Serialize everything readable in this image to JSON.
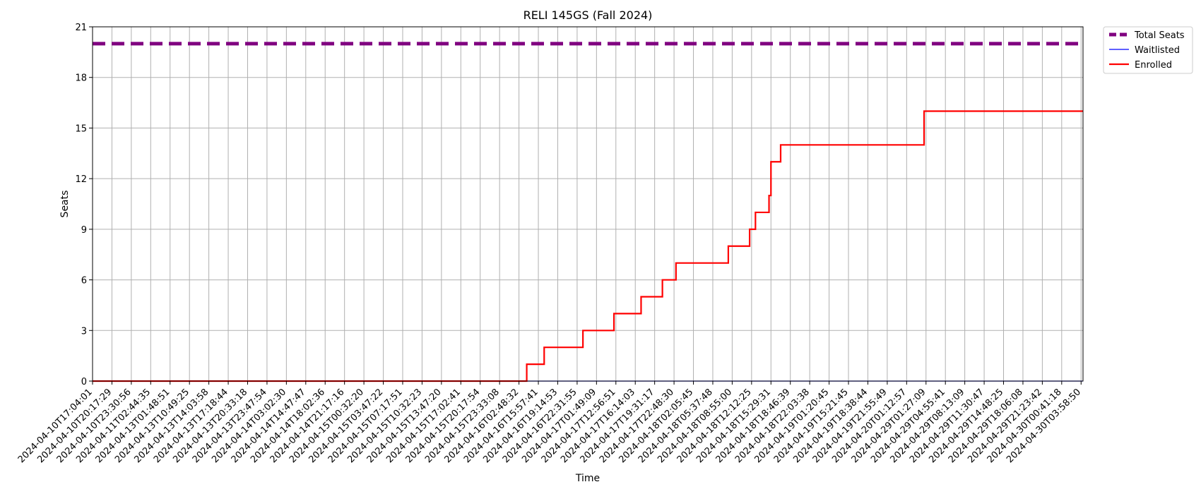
{
  "chart_data": {
    "type": "line",
    "title": "RELI 145GS (Fall 2024)",
    "xlabel": "Time",
    "ylabel": "Seats",
    "ylim": [
      0,
      21
    ],
    "yticks": [
      0,
      3,
      6,
      9,
      12,
      15,
      18,
      21
    ],
    "grid": true,
    "legend_position": "outside-top-right",
    "x_tick_labels": [
      "2024-04-10T17:04:01",
      "2024-04-10T20:17:29",
      "2024-04-10T23:30:56",
      "2024-04-11T02:44:35",
      "2024-04-13T01:48:51",
      "2024-04-13T10:49:25",
      "2024-04-13T14:03:58",
      "2024-04-13T17:18:44",
      "2024-04-13T20:33:18",
      "2024-04-13T23:47:54",
      "2024-04-14T03:02:30",
      "2024-04-14T14:47:47",
      "2024-04-14T18:02:36",
      "2024-04-14T21:17:16",
      "2024-04-15T00:32:20",
      "2024-04-15T03:47:22",
      "2024-04-15T07:17:51",
      "2024-04-15T10:32:23",
      "2024-04-15T13:47:20",
      "2024-04-15T17:02:41",
      "2024-04-15T20:17:54",
      "2024-04-15T23:33:08",
      "2024-04-16T02:48:32",
      "2024-04-16T15:57:41",
      "2024-04-16T19:14:53",
      "2024-04-16T22:31:55",
      "2024-04-17T01:49:09",
      "2024-04-17T12:56:51",
      "2024-04-17T16:14:03",
      "2024-04-17T19:31:17",
      "2024-04-17T22:48:30",
      "2024-04-18T02:05:45",
      "2024-04-18T05:37:48",
      "2024-04-18T08:55:00",
      "2024-04-18T12:12:25",
      "2024-04-18T15:29:31",
      "2024-04-18T18:46:39",
      "2024-04-18T22:03:38",
      "2024-04-19T01:20:45",
      "2024-04-19T15:21:45",
      "2024-04-19T18:38:44",
      "2024-04-19T21:55:49",
      "2024-04-20T01:12:57",
      "2024-04-29T01:27:09",
      "2024-04-29T04:55:41",
      "2024-04-29T08:13:09",
      "2024-04-29T11:30:47",
      "2024-04-29T14:48:25",
      "2024-04-29T18:06:08",
      "2024-04-29T21:23:42",
      "2024-04-30T00:41:18",
      "2024-04-30T03:58:50"
    ],
    "x_index_range": [
      0,
      51.1
    ],
    "series": [
      {
        "name": "Total Seats",
        "color": "#800080",
        "style": "dashed",
        "points": [
          [
            0,
            20
          ],
          [
            51.1,
            20
          ]
        ]
      },
      {
        "name": "Waitlisted",
        "color": "#0000ff",
        "style": "solid",
        "points": [
          [
            0,
            0
          ],
          [
            51.1,
            0
          ]
        ]
      },
      {
        "name": "Enrolled",
        "color": "#ff0000",
        "style": "solid",
        "points": [
          [
            0,
            0
          ],
          [
            22.4,
            0
          ],
          [
            22.4,
            1
          ],
          [
            23.3,
            1
          ],
          [
            23.3,
            2
          ],
          [
            25.3,
            2
          ],
          [
            25.3,
            3
          ],
          [
            26.9,
            3
          ],
          [
            26.9,
            4
          ],
          [
            28.3,
            4
          ],
          [
            28.3,
            5
          ],
          [
            29.4,
            5
          ],
          [
            29.4,
            6
          ],
          [
            30.1,
            6
          ],
          [
            30.1,
            7
          ],
          [
            32.8,
            7
          ],
          [
            32.8,
            8
          ],
          [
            33.9,
            8
          ],
          [
            33.9,
            9
          ],
          [
            34.2,
            9
          ],
          [
            34.2,
            10
          ],
          [
            34.9,
            10
          ],
          [
            34.9,
            11
          ],
          [
            35.0,
            11
          ],
          [
            35.0,
            13
          ],
          [
            35.5,
            13
          ],
          [
            35.5,
            14
          ],
          [
            42.9,
            14
          ],
          [
            42.9,
            16
          ],
          [
            51.1,
            16
          ]
        ]
      }
    ]
  }
}
